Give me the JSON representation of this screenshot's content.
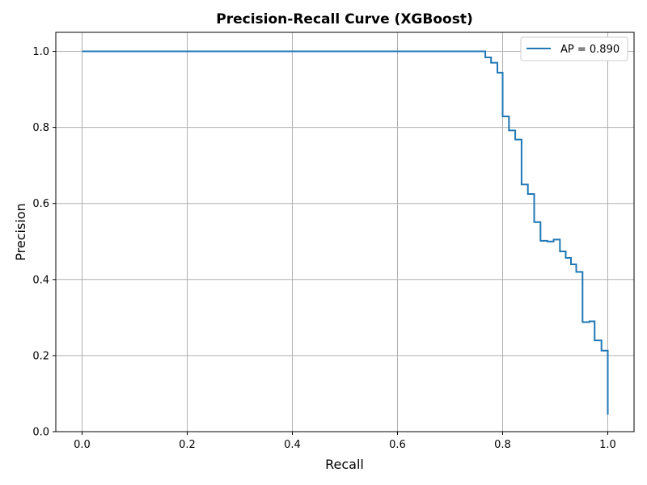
{
  "chart_data": {
    "type": "line",
    "title": "Precision-Recall Curve (XGBoost)",
    "xlabel": "Recall",
    "ylabel": "Precision",
    "xlim": [
      -0.05,
      1.05
    ],
    "ylim": [
      0.0,
      1.05
    ],
    "x_ticks": [
      "0.0",
      "0.2",
      "0.4",
      "0.6",
      "0.8",
      "1.0"
    ],
    "y_ticks": [
      "0.0",
      "0.2",
      "0.4",
      "0.6",
      "0.8",
      "1.0"
    ],
    "grid": true,
    "legend_position": "top-right",
    "series": [
      {
        "name": "AP = 0.890",
        "color": "#1f77b4",
        "step": "pre",
        "x": [
          0.0,
          0.754,
          0.767,
          0.778,
          0.79,
          0.8,
          0.812,
          0.824,
          0.836,
          0.848,
          0.86,
          0.872,
          0.885,
          0.897,
          0.909,
          0.92,
          0.93,
          0.94,
          0.952,
          0.965,
          0.975,
          0.988,
          1.0,
          1.0
        ],
        "y": [
          1.0,
          1.0,
          0.984,
          0.97,
          0.944,
          0.829,
          0.792,
          0.768,
          0.65,
          0.625,
          0.551,
          0.502,
          0.5,
          0.505,
          0.474,
          0.457,
          0.44,
          0.42,
          0.288,
          0.29,
          0.24,
          0.213,
          0.208,
          0.045
        ]
      }
    ]
  }
}
